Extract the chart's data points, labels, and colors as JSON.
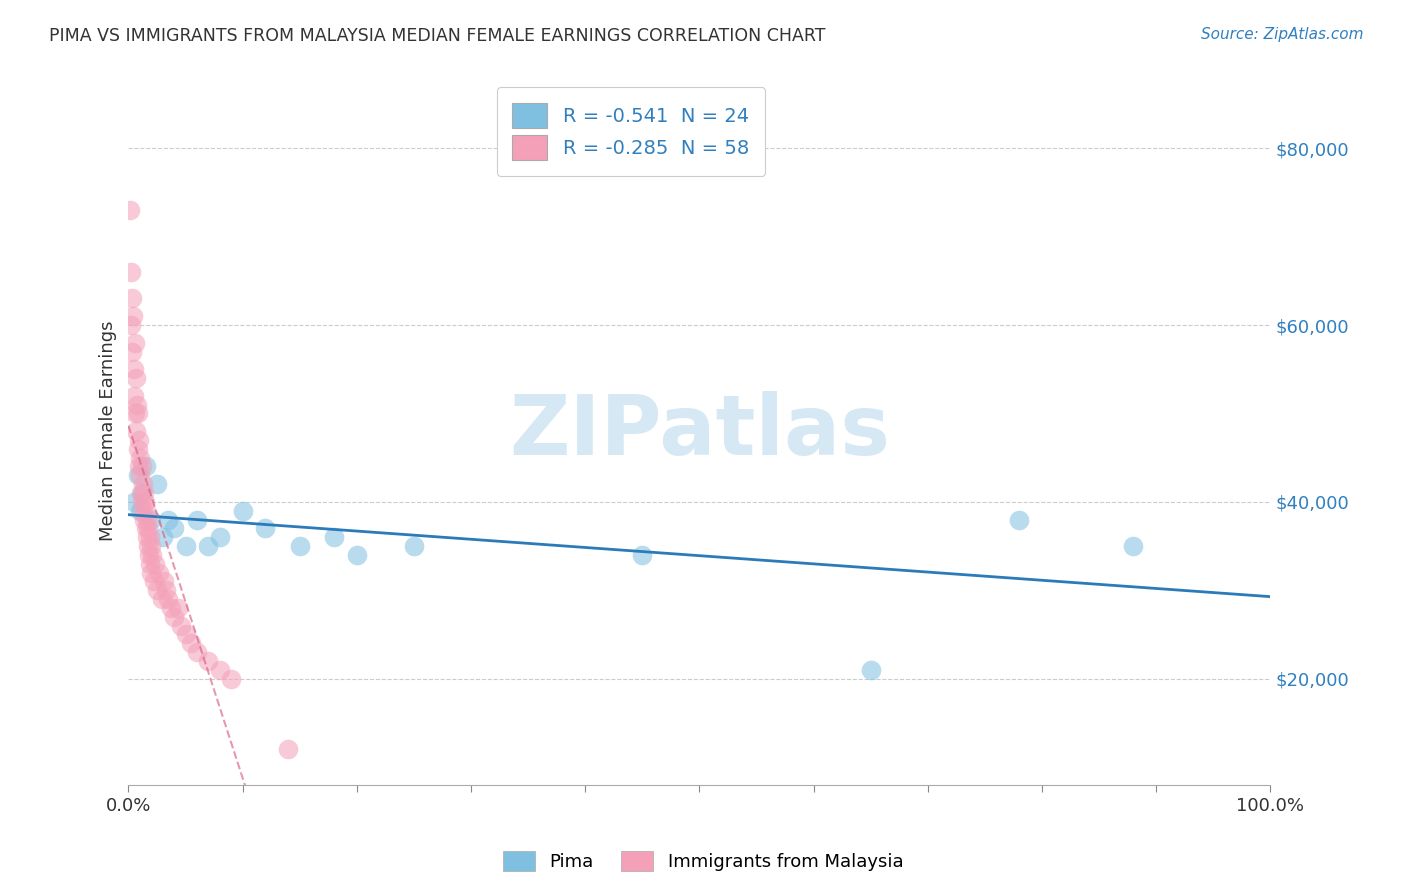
{
  "title": "PIMA VS IMMIGRANTS FROM MALAYSIA MEDIAN FEMALE EARNINGS CORRELATION CHART",
  "source": "Source: ZipAtlas.com",
  "ylabel": "Median Female Earnings",
  "x_min": 0.0,
  "x_max": 100.0,
  "y_min": 8000,
  "y_max": 88000,
  "y_ticks": [
    20000,
    40000,
    60000,
    80000
  ],
  "y_tick_labels": [
    "$20,000",
    "$40,000",
    "$60,000",
    "$80,000"
  ],
  "x_ticks": [
    0.0,
    10.0,
    20.0,
    30.0,
    40.0,
    50.0,
    60.0,
    70.0,
    80.0,
    90.0,
    100.0
  ],
  "x_tick_labels": [
    "0.0%",
    "",
    "",
    "",
    "",
    "",
    "",
    "",
    "",
    "",
    "100.0%"
  ],
  "pima_color": "#7fbfdf",
  "malaysia_color": "#f4a0b8",
  "pima_trend_color": "#2b7bba",
  "malaysia_trend_color": "#d4547a",
  "watermark_text": "ZIPatlas",
  "legend_label1": "Pima",
  "legend_label2": "Immigrants from Malaysia",
  "pima_x": [
    0.5,
    0.8,
    1.0,
    1.2,
    1.5,
    2.0,
    2.5,
    3.0,
    3.5,
    4.0,
    5.0,
    6.0,
    7.0,
    8.0,
    10.0,
    12.0,
    15.0,
    18.0,
    20.0,
    25.0,
    45.0,
    65.0,
    78.0,
    88.0
  ],
  "pima_y": [
    40000,
    43000,
    39000,
    41000,
    44000,
    38000,
    42000,
    36000,
    38000,
    37000,
    35000,
    38000,
    35000,
    36000,
    39000,
    37000,
    35000,
    36000,
    34000,
    35000,
    34000,
    21000,
    38000,
    35000
  ],
  "malaysia_x": [
    0.15,
    0.2,
    0.25,
    0.3,
    0.35,
    0.4,
    0.45,
    0.5,
    0.55,
    0.6,
    0.65,
    0.7,
    0.75,
    0.8,
    0.85,
    0.9,
    0.95,
    1.0,
    1.05,
    1.1,
    1.15,
    1.2,
    1.25,
    1.3,
    1.35,
    1.4,
    1.45,
    1.5,
    1.55,
    1.6,
    1.65,
    1.7,
    1.75,
    1.8,
    1.85,
    1.9,
    1.95,
    2.0,
    2.1,
    2.2,
    2.3,
    2.5,
    2.7,
    2.9,
    3.1,
    3.3,
    3.5,
    3.7,
    4.0,
    4.3,
    4.6,
    5.0,
    5.5,
    6.0,
    7.0,
    8.0,
    9.0,
    14.0
  ],
  "malaysia_y": [
    73000,
    66000,
    60000,
    63000,
    57000,
    61000,
    55000,
    52000,
    58000,
    50000,
    54000,
    48000,
    51000,
    46000,
    50000,
    44000,
    47000,
    43000,
    45000,
    41000,
    44000,
    40000,
    42000,
    39000,
    41000,
    38000,
    40000,
    37000,
    39000,
    36000,
    38000,
    35000,
    37000,
    34000,
    36000,
    33000,
    35000,
    32000,
    34000,
    31000,
    33000,
    30000,
    32000,
    29000,
    31000,
    30000,
    29000,
    28000,
    27000,
    28000,
    26000,
    25000,
    24000,
    23000,
    22000,
    21000,
    20000,
    12000
  ]
}
